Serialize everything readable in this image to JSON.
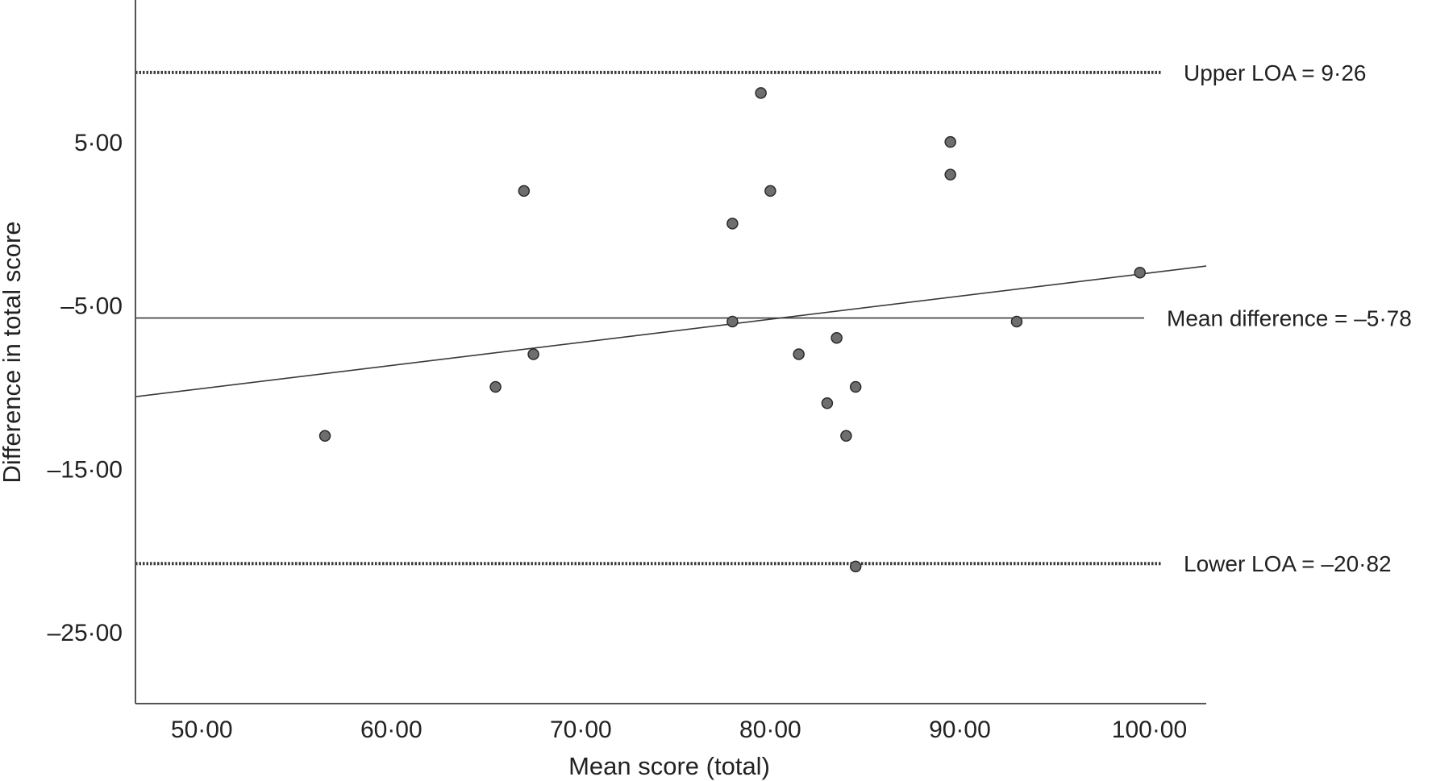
{
  "chart_data": {
    "type": "scatter",
    "xlabel": "Mean score (total)",
    "ylabel": "Difference in total score",
    "xlim": [
      46.5,
      103
    ],
    "ylim": [
      -29.4,
      13.3
    ],
    "x_ticks": [
      {
        "value": 50,
        "label": "50·00"
      },
      {
        "value": 60,
        "label": "60·00"
      },
      {
        "value": 70,
        "label": "70·00"
      },
      {
        "value": 80,
        "label": "80·00"
      },
      {
        "value": 90,
        "label": "90·00"
      },
      {
        "value": 100,
        "label": "100·00"
      }
    ],
    "y_ticks": [
      {
        "value": 5,
        "label": "5·00"
      },
      {
        "value": -5,
        "label": "–5·00"
      },
      {
        "value": -15,
        "label": "–15·00"
      },
      {
        "value": -25,
        "label": "–25·00"
      }
    ],
    "points": [
      {
        "x": 56.5,
        "y": -13
      },
      {
        "x": 65.5,
        "y": -10
      },
      {
        "x": 67,
        "y": 2
      },
      {
        "x": 67.5,
        "y": -8
      },
      {
        "x": 78,
        "y": 0
      },
      {
        "x": 78,
        "y": -6
      },
      {
        "x": 79.5,
        "y": 8
      },
      {
        "x": 80,
        "y": 2
      },
      {
        "x": 81.5,
        "y": -8
      },
      {
        "x": 83,
        "y": -11
      },
      {
        "x": 83.5,
        "y": -7
      },
      {
        "x": 84,
        "y": -13
      },
      {
        "x": 84.5,
        "y": -10
      },
      {
        "x": 84.5,
        "y": -21
      },
      {
        "x": 89.5,
        "y": 5
      },
      {
        "x": 89.5,
        "y": 3
      },
      {
        "x": 93,
        "y": -6
      },
      {
        "x": 99.5,
        "y": -3
      }
    ],
    "reference_lines": [
      {
        "value": 9.26,
        "style": "dotted",
        "label": "Upper LOA = 9·26"
      },
      {
        "value": -5.78,
        "style": "solid",
        "label": "Mean difference = –5·78"
      },
      {
        "value": -20.82,
        "style": "dotted",
        "label": "Lower LOA = –20·82"
      }
    ],
    "regression_line": {
      "x": [
        46.5,
        103
      ],
      "y": [
        -10.6,
        -2.6
      ]
    },
    "colors": {
      "point_fill": "#6e6e6e",
      "point_stroke": "#2b2b2b",
      "line": "#3a3a3a",
      "axis": "#555555",
      "text": "#222222"
    }
  }
}
